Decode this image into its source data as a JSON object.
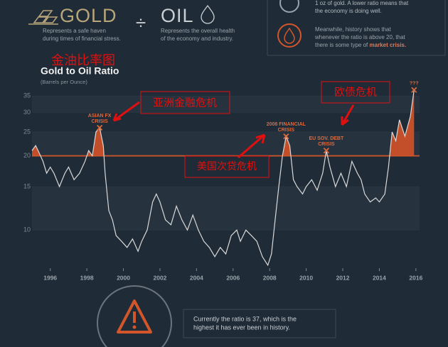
{
  "header": {
    "gold_label": "GOLD",
    "gold_desc": [
      "Represents a safe haven",
      "during times of financial stress."
    ],
    "divide": "÷",
    "oil_label": "OIL",
    "oil_desc": [
      "Represents the overall health",
      "of the economy and industry."
    ]
  },
  "info_box": {
    "top_lines": [
      "1 oz of gold. A lower ratio means that",
      "the economy is doing well."
    ],
    "lines": [
      "Meanwhile, history shows that",
      "whenever the ratio is above 20, that"
    ],
    "last_line": "there is some type of",
    "last_bold": "market crisis."
  },
  "overlay_labels": {
    "title": "金油比率图",
    "asia": "亚洲金融危机",
    "us": "美国次贷危机",
    "eu": "欧债危机"
  },
  "chart_data": {
    "type": "line",
    "title": "Gold to Oil Ratio",
    "subtitle": "(Barrels per Ounce)",
    "log_scale": true,
    "xlim": [
      1995,
      2016.2
    ],
    "xticks": [
      1996,
      1998,
      2000,
      2002,
      2004,
      2006,
      2008,
      2010,
      2012,
      2014,
      2016
    ],
    "ylim": [
      7,
      40
    ],
    "yticks": [
      10,
      15,
      20,
      25,
      30,
      35
    ],
    "reference_line": 20,
    "reference_color": "#d2562a",
    "fill_color": "#c24f2a",
    "series": [
      {
        "name": "Gold to Oil Ratio",
        "color": "#d9d9d9",
        "x": [
          1995.0,
          1995.2,
          1995.4,
          1995.6,
          1995.8,
          1996.0,
          1996.2,
          1996.5,
          1996.8,
          1997.0,
          1997.3,
          1997.6,
          1997.9,
          1998.1,
          1998.3,
          1998.5,
          1998.7,
          1998.9,
          1999.0,
          1999.2,
          1999.4,
          1999.6,
          1999.9,
          2000.2,
          2000.5,
          2000.8,
          2001.0,
          2001.3,
          2001.6,
          2001.8,
          2002.0,
          2002.3,
          2002.6,
          2002.9,
          2003.2,
          2003.5,
          2003.8,
          2004.1,
          2004.4,
          2004.7,
          2005.0,
          2005.3,
          2005.6,
          2005.9,
          2006.2,
          2006.4,
          2006.7,
          2007.0,
          2007.3,
          2007.6,
          2007.9,
          2008.1,
          2008.3,
          2008.5,
          2008.7,
          2008.9,
          2009.1,
          2009.3,
          2009.5,
          2009.8,
          2010.0,
          2010.3,
          2010.6,
          2010.9,
          2011.1,
          2011.3,
          2011.6,
          2011.9,
          2012.2,
          2012.5,
          2012.8,
          2013.0,
          2013.2,
          2013.5,
          2013.8,
          2014.0,
          2014.3,
          2014.5,
          2014.7,
          2014.9,
          2015.1,
          2015.4,
          2015.7,
          2015.9
        ],
        "values": [
          21,
          22,
          20.5,
          19,
          17,
          18,
          17,
          15,
          17,
          18,
          16,
          17,
          19,
          21,
          20,
          25,
          26,
          22,
          17,
          12,
          11,
          9.5,
          9,
          8.5,
          9.2,
          8.2,
          9,
          10,
          13,
          14,
          13,
          11,
          10.5,
          12.5,
          11,
          10,
          11.5,
          10,
          9,
          8.5,
          7.8,
          8.5,
          8,
          9.5,
          10,
          9,
          10,
          9.5,
          9,
          7.8,
          7.2,
          8,
          11,
          15,
          20,
          24,
          22,
          16,
          15,
          14,
          15,
          16,
          14.5,
          17,
          21,
          18,
          15,
          17,
          15,
          19,
          17,
          16,
          14,
          13,
          13.5,
          13,
          14,
          18,
          25,
          23,
          28,
          24,
          29,
          37
        ]
      }
    ],
    "annotations": [
      {
        "label": [
          "ASIAN FX",
          "CRISIS"
        ],
        "x": 1998.7,
        "y": 26
      },
      {
        "label": [
          "2008 FINANCIAL",
          "CRISIS"
        ],
        "x": 2008.9,
        "y": 24
      },
      {
        "label": [
          "EU SOV. DEBT",
          "CRISIS"
        ],
        "x": 2011.1,
        "y": 21
      },
      {
        "label": [
          "???"
        ],
        "x": 2015.9,
        "y": 37
      }
    ]
  },
  "footer": {
    "lines": [
      "Currently the ratio is 37, which is the",
      "highest it has ever been in history."
    ]
  }
}
